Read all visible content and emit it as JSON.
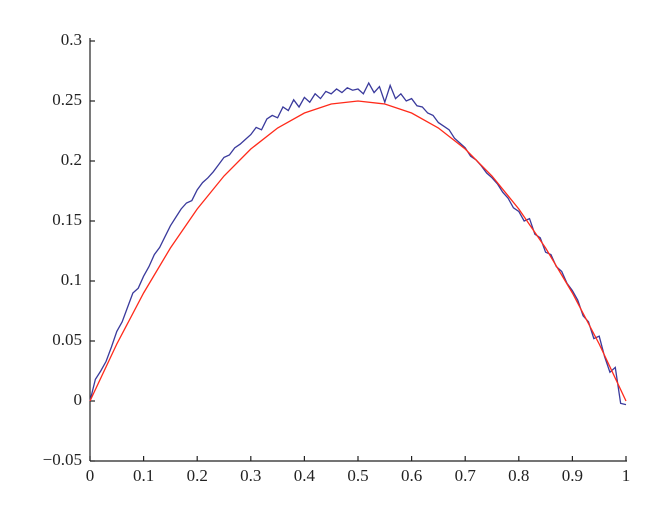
{
  "chart_data": {
    "type": "line",
    "xlim": [
      0,
      1
    ],
    "xticks": [
      0,
      0.1,
      0.2,
      0.3,
      0.4,
      0.5,
      0.6,
      0.7,
      0.8,
      0.9,
      1
    ],
    "ylim": [
      -0.05,
      0.3
    ],
    "yticks": [
      {
        "value": -0.05,
        "label": "−0.05"
      },
      0,
      0.05,
      0.1,
      0.15,
      0.2,
      0.25,
      0.3
    ],
    "grid": false,
    "series": [
      {
        "color": "#3a3a9c",
        "x": [
          0,
          0.01,
          0.02,
          0.03,
          0.04,
          0.05,
          0.06,
          0.07,
          0.08,
          0.09,
          0.1,
          0.11,
          0.12,
          0.13,
          0.14,
          0.15,
          0.16,
          0.17,
          0.18,
          0.19,
          0.2,
          0.21,
          0.22,
          0.23,
          0.24,
          0.25,
          0.26,
          0.27,
          0.28,
          0.29,
          0.3,
          0.31,
          0.32,
          0.33,
          0.34,
          0.35,
          0.36,
          0.37,
          0.38,
          0.39,
          0.4,
          0.41,
          0.42,
          0.43,
          0.44,
          0.45,
          0.46,
          0.47,
          0.48,
          0.49,
          0.5,
          0.51,
          0.52,
          0.53,
          0.54,
          0.55,
          0.56,
          0.57,
          0.58,
          0.59,
          0.6,
          0.61,
          0.62,
          0.63,
          0.64,
          0.65,
          0.66,
          0.67,
          0.68,
          0.69,
          0.7,
          0.71,
          0.72,
          0.73,
          0.74,
          0.75,
          0.76,
          0.77,
          0.78,
          0.79,
          0.8,
          0.81,
          0.82,
          0.83,
          0.84,
          0.85,
          0.86,
          0.87,
          0.88,
          0.89,
          0.9,
          0.91,
          0.92,
          0.93,
          0.94,
          0.95,
          0.96,
          0.97,
          0.98,
          0.99,
          1
        ],
        "values": [
          0,
          0.018,
          0.025,
          0.033,
          0.045,
          0.058,
          0.066,
          0.078,
          0.09,
          0.094,
          0.104,
          0.112,
          0.122,
          0.128,
          0.137,
          0.146,
          0.153,
          0.16,
          0.165,
          0.167,
          0.176,
          0.182,
          0.186,
          0.191,
          0.197,
          0.203,
          0.205,
          0.211,
          0.214,
          0.218,
          0.222,
          0.228,
          0.226,
          0.235,
          0.238,
          0.236,
          0.245,
          0.242,
          0.251,
          0.245,
          0.253,
          0.249,
          0.256,
          0.252,
          0.258,
          0.256,
          0.26,
          0.257,
          0.261,
          0.259,
          0.26,
          0.256,
          0.265,
          0.257,
          0.262,
          0.249,
          0.263,
          0.252,
          0.256,
          0.25,
          0.252,
          0.246,
          0.245,
          0.24,
          0.238,
          0.232,
          0.229,
          0.226,
          0.219,
          0.215,
          0.211,
          0.204,
          0.201,
          0.196,
          0.19,
          0.186,
          0.181,
          0.174,
          0.169,
          0.161,
          0.158,
          0.15,
          0.152,
          0.139,
          0.136,
          0.124,
          0.122,
          0.112,
          0.108,
          0.098,
          0.092,
          0.084,
          0.071,
          0.066,
          0.052,
          0.054,
          0.037,
          0.024,
          0.028,
          -0.002,
          -0.003
        ]
      },
      {
        "color": "#ff2a1a",
        "x": [
          0,
          0.05,
          0.1,
          0.15,
          0.2,
          0.25,
          0.3,
          0.35,
          0.4,
          0.45,
          0.5,
          0.55,
          0.6,
          0.65,
          0.7,
          0.75,
          0.8,
          0.85,
          0.9,
          0.95,
          1
        ],
        "values": [
          0,
          0.0475,
          0.09,
          0.1275,
          0.16,
          0.1875,
          0.21,
          0.2275,
          0.24,
          0.2475,
          0.25,
          0.2475,
          0.24,
          0.2275,
          0.21,
          0.1875,
          0.16,
          0.1275,
          0.09,
          0.0475,
          0
        ]
      }
    ]
  }
}
